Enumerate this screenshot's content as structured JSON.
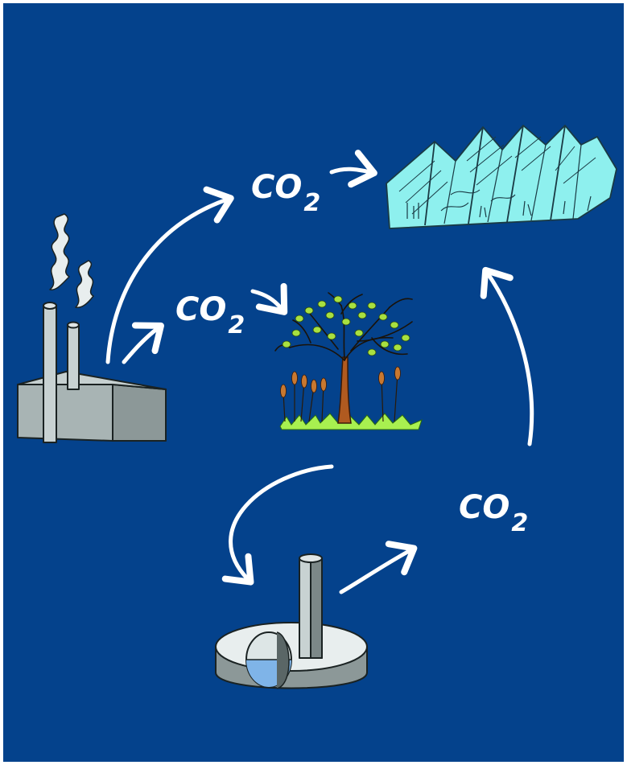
{
  "labels": {
    "co2_top": {
      "main": "CO",
      "sub": "2"
    },
    "co2_middle": {
      "main": "CO",
      "sub": "2"
    },
    "co2_right": {
      "main": "CO",
      "sub": "2"
    }
  },
  "colors": {
    "background": "#04428c",
    "frame": "#ffffff",
    "arrow": "#ffffff",
    "factory_gray": "#a8b4b4",
    "greenhouse_cyan": "#8ef0ee",
    "tree_trunk": "#b05a20",
    "leaf_green": "#a8e040",
    "grass_green": "#a8f050",
    "tank_water": "#7fb4e8"
  },
  "icons": [
    "factory-icon",
    "greenhouse-icon",
    "tree-icon",
    "storage-tank-icon"
  ]
}
